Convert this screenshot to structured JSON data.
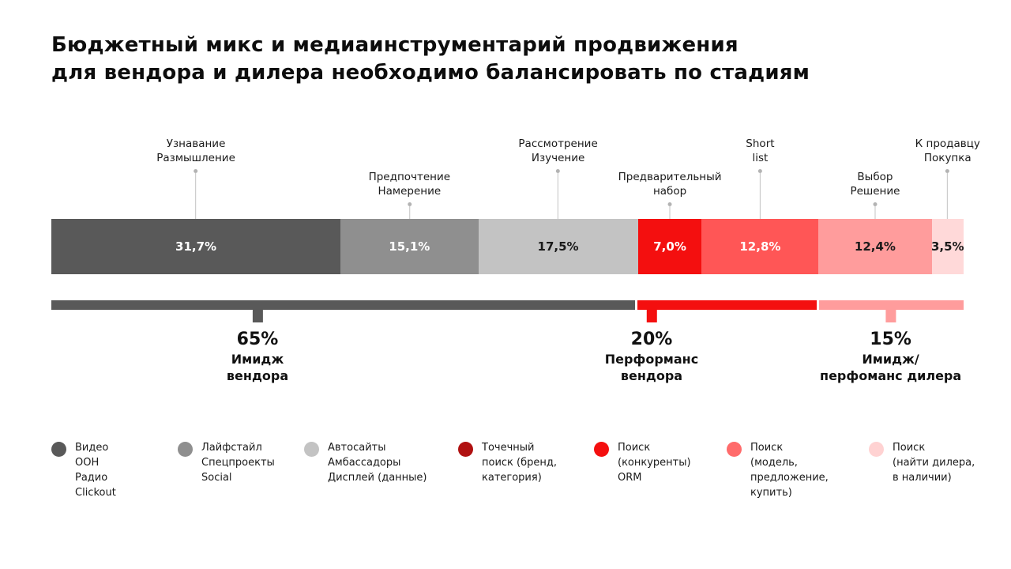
{
  "title": {
    "line1": "Бюджетный микс и медиаинструментарий продвижения",
    "line2": "для вендора и дилера необходимо балансировать по стадиям"
  },
  "chart_data": {
    "type": "bar",
    "stacked": true,
    "unit": "%",
    "total": 100,
    "segments": [
      {
        "label_lines": [
          "Узнавание",
          "Размышление"
        ],
        "value": 31.7,
        "display": "31,7%",
        "color": "#595959",
        "text_color": "#ffffff",
        "callout_row": "high"
      },
      {
        "label_lines": [
          "Предпочтение",
          "Намерение"
        ],
        "value": 15.1,
        "display": "15,1%",
        "color": "#8f8f8f",
        "text_color": "#ffffff",
        "callout_row": "low"
      },
      {
        "label_lines": [
          "Рассмотрение",
          "Изучение"
        ],
        "value": 17.5,
        "display": "17,5%",
        "color": "#c3c3c3",
        "text_color": "#1a1a1a",
        "callout_row": "high"
      },
      {
        "label_lines": [
          "Предварительный",
          "набор"
        ],
        "value": 7.0,
        "display": "7,0%",
        "color": "#f40f0f",
        "text_color": "#ffffff",
        "callout_row": "low"
      },
      {
        "label_lines": [
          "Short",
          "list"
        ],
        "value": 12.8,
        "display": "12,8%",
        "color": "#ff5656",
        "text_color": "#ffffff",
        "callout_row": "high"
      },
      {
        "label_lines": [
          "Выбор",
          "Решение"
        ],
        "value": 12.4,
        "display": "12,4%",
        "color": "#ff9c9c",
        "text_color": "#1a1a1a",
        "callout_row": "low"
      },
      {
        "label_lines": [
          "К продавцу",
          "Покупка"
        ],
        "value": 3.5,
        "display": "3,5%",
        "color": "#ffd9d9",
        "text_color": "#1a1a1a",
        "callout_row": "high"
      }
    ],
    "groups": [
      {
        "value": 65,
        "display": "65%",
        "label_lines": [
          "Имидж",
          "вендора"
        ],
        "color": "#595959",
        "width_pct": 64.3,
        "tick_pct": 22.6
      },
      {
        "value": 20,
        "display": "20%",
        "label_lines": [
          "Перформанс",
          "вендора"
        ],
        "color": "#f40f0f",
        "width_pct": 19.8,
        "tick_pct": 65.8
      },
      {
        "value": 15,
        "display": "15%",
        "label_lines": [
          "Имидж/",
          "перфоманс дилера"
        ],
        "color": "#ff9c9c",
        "width_pct": 15.9,
        "tick_pct": 92.0
      }
    ]
  },
  "legend": [
    {
      "color": "#595959",
      "lines": [
        "Видео",
        "OOH",
        "Радио",
        "Clickout"
      ]
    },
    {
      "color": "#8f8f8f",
      "lines": [
        "Лайфстайл",
        "Спецпроекты",
        "Social"
      ]
    },
    {
      "color": "#c3c3c3",
      "lines": [
        "Автосайты",
        "Амбассадоры",
        "Дисплей (данные)"
      ]
    },
    {
      "color": "#b01111",
      "lines": [
        "Точечный",
        "поиск (бренд,",
        "категория)"
      ]
    },
    {
      "color": "#f40f0f",
      "lines": [
        "Поиск",
        "(конкуренты)",
        "ORM"
      ]
    },
    {
      "color": "#ff6b6b",
      "lines": [
        "Поиск",
        "(модель,",
        "предложение,",
        "купить)"
      ]
    },
    {
      "color": "#ffd2d2",
      "lines": [
        "Поиск",
        "(найти дилера,",
        "в наличии)"
      ]
    }
  ]
}
